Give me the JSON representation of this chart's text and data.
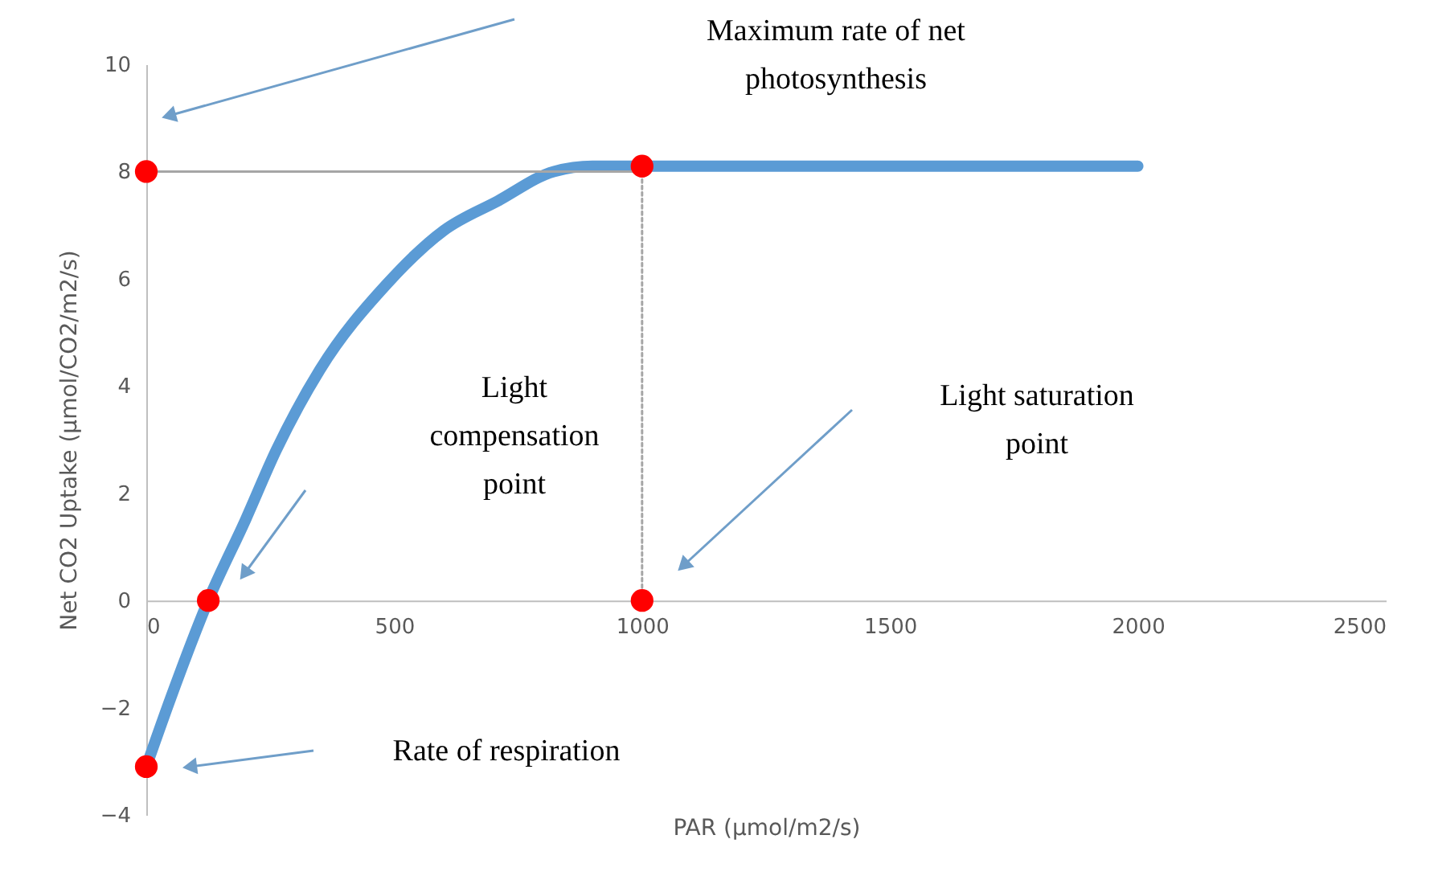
{
  "chart_data": {
    "type": "line",
    "xlabel": "PAR (µmol/m2/s)",
    "ylabel": "Net CO2 Uptake (µmol/CO2/m2/s)",
    "xlim": [
      0,
      2500
    ],
    "xticks": [
      0,
      500,
      1000,
      1500,
      2000,
      2500
    ],
    "ylim": [
      -4,
      10
    ],
    "yticks": [
      -4,
      -2,
      0,
      2,
      4,
      6,
      8,
      10
    ],
    "grid": false,
    "series": [
      {
        "color": "#5b9bd5",
        "x": [
          0,
          50,
          125,
          200,
          262,
          350,
          485,
          600,
          709,
          822,
          900,
          1000,
          1500,
          2000
        ],
        "values": [
          -3.1,
          -1.8,
          0,
          1.5,
          2.8,
          4.3,
          5.9,
          6.9,
          7.45,
          8.0,
          8.1,
          8.1,
          8.1,
          8.1
        ]
      },
      {
        "color": "#a6a6a6",
        "x": [
          0,
          1000
        ],
        "values": [
          8,
          8
        ]
      },
      {
        "color": "#a6a6a6",
        "line_style": "dotted",
        "x": [
          1000,
          1000
        ],
        "values": [
          0,
          8.1
        ]
      },
      {
        "type": "scatter",
        "color": "#ff0000",
        "marker": "circle",
        "x": [
          0,
          125,
          0,
          1000,
          1000
        ],
        "values": [
          8,
          0,
          -3.1,
          8.1,
          0
        ]
      }
    ],
    "annotations": [
      "Maximum rate of net\nphotosynthesis",
      "Light\ncompensation\npoint",
      "Light saturation\npoint",
      "Rate of respiration"
    ]
  }
}
